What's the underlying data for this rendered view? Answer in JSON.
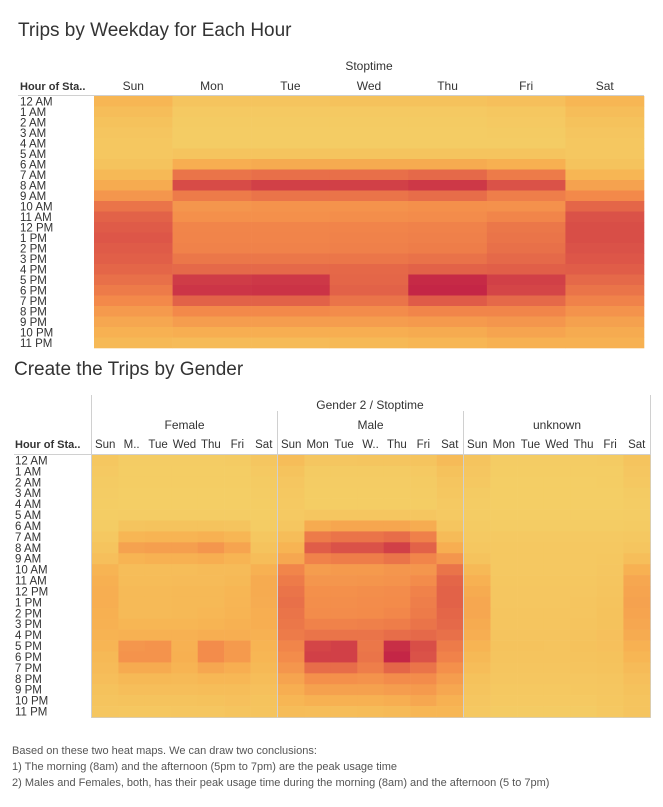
{
  "chart_data": [
    {
      "type": "heatmap",
      "title": "Trips by Weekday for Each Hour",
      "column_header": "Stoptime",
      "row_header": "Hour of Sta..",
      "x": [
        "Sun",
        "Mon",
        "Tue",
        "Wed",
        "Thu",
        "Fri",
        "Sat"
      ],
      "y": [
        "12 AM",
        "1 AM",
        "2 AM",
        "3 AM",
        "4 AM",
        "5 AM",
        "6 AM",
        "7 AM",
        "8 AM",
        "9 AM",
        "10 AM",
        "11 AM",
        "12 PM",
        "1 PM",
        "2 PM",
        "3 PM",
        "4 PM",
        "5 PM",
        "6 PM",
        "7 PM",
        "8 PM",
        "9 PM",
        "10 PM",
        "11 PM"
      ],
      "values": [
        [
          0.22,
          0.1,
          0.1,
          0.12,
          0.12,
          0.14,
          0.22
        ],
        [
          0.16,
          0.05,
          0.05,
          0.05,
          0.05,
          0.07,
          0.16
        ],
        [
          0.12,
          0.04,
          0.04,
          0.04,
          0.04,
          0.05,
          0.12
        ],
        [
          0.09,
          0.03,
          0.03,
          0.03,
          0.03,
          0.04,
          0.09
        ],
        [
          0.07,
          0.03,
          0.03,
          0.03,
          0.03,
          0.03,
          0.07
        ],
        [
          0.07,
          0.1,
          0.1,
          0.1,
          0.1,
          0.1,
          0.07
        ],
        [
          0.11,
          0.28,
          0.3,
          0.3,
          0.3,
          0.27,
          0.11
        ],
        [
          0.2,
          0.62,
          0.65,
          0.65,
          0.68,
          0.58,
          0.22
        ],
        [
          0.3,
          0.83,
          0.88,
          0.88,
          0.92,
          0.8,
          0.35
        ],
        [
          0.42,
          0.58,
          0.62,
          0.62,
          0.66,
          0.56,
          0.5
        ],
        [
          0.62,
          0.42,
          0.44,
          0.44,
          0.46,
          0.45,
          0.7
        ],
        [
          0.72,
          0.46,
          0.46,
          0.47,
          0.48,
          0.52,
          0.8
        ],
        [
          0.76,
          0.52,
          0.52,
          0.53,
          0.54,
          0.6,
          0.82
        ],
        [
          0.78,
          0.53,
          0.53,
          0.54,
          0.55,
          0.62,
          0.82
        ],
        [
          0.76,
          0.54,
          0.54,
          0.55,
          0.57,
          0.64,
          0.8
        ],
        [
          0.74,
          0.6,
          0.6,
          0.61,
          0.63,
          0.68,
          0.78
        ],
        [
          0.7,
          0.68,
          0.68,
          0.69,
          0.72,
          0.74,
          0.75
        ],
        [
          0.64,
          0.9,
          0.92,
          0.7,
          0.98,
          0.88,
          0.68
        ],
        [
          0.58,
          0.93,
          0.94,
          0.72,
          1.0,
          0.86,
          0.62
        ],
        [
          0.5,
          0.72,
          0.72,
          0.62,
          0.76,
          0.68,
          0.54
        ],
        [
          0.4,
          0.5,
          0.5,
          0.48,
          0.52,
          0.52,
          0.44
        ],
        [
          0.32,
          0.38,
          0.38,
          0.38,
          0.4,
          0.42,
          0.36
        ],
        [
          0.26,
          0.28,
          0.28,
          0.28,
          0.3,
          0.34,
          0.3
        ],
        [
          0.2,
          0.18,
          0.18,
          0.2,
          0.22,
          0.26,
          0.26
        ]
      ]
    },
    {
      "type": "heatmap",
      "title": "Create the Trips by Gender",
      "column_header": "Gender 2 / Stoptime",
      "row_header": "Hour of Sta..",
      "groups": [
        "Female",
        "Male",
        "unknown"
      ],
      "x_labels": [
        [
          "Sun",
          "M..",
          "Tue",
          "Wed",
          "Thu",
          "Fri",
          "Sat"
        ],
        [
          "Sun",
          "Mon",
          "Tue",
          "W..",
          "Thu",
          "Fri",
          "Sat"
        ],
        [
          "Sun",
          "Mon",
          "Tue",
          "Wed",
          "Thu",
          "Fri",
          "Sat"
        ]
      ],
      "y": [
        "12 AM",
        "1 AM",
        "2 AM",
        "3 AM",
        "4 AM",
        "5 AM",
        "6 AM",
        "7 AM",
        "8 AM",
        "9 AM",
        "10 AM",
        "11 AM",
        "12 PM",
        "1 PM",
        "2 PM",
        "3 PM",
        "4 PM",
        "5 PM",
        "6 PM",
        "7 PM",
        "8 PM",
        "9 PM",
        "10 PM",
        "11 PM"
      ],
      "values": {
        "Female": [
          [
            0.07,
            0.03,
            0.03,
            0.03,
            0.03,
            0.04,
            0.08
          ],
          [
            0.05,
            0.02,
            0.02,
            0.02,
            0.02,
            0.02,
            0.05
          ],
          [
            0.04,
            0.02,
            0.02,
            0.02,
            0.02,
            0.02,
            0.04
          ],
          [
            0.03,
            0.01,
            0.01,
            0.01,
            0.01,
            0.01,
            0.03
          ],
          [
            0.02,
            0.01,
            0.01,
            0.01,
            0.01,
            0.01,
            0.02
          ],
          [
            0.02,
            0.03,
            0.03,
            0.03,
            0.03,
            0.03,
            0.02
          ],
          [
            0.03,
            0.1,
            0.11,
            0.11,
            0.11,
            0.1,
            0.03
          ],
          [
            0.06,
            0.22,
            0.24,
            0.24,
            0.26,
            0.22,
            0.07
          ],
          [
            0.1,
            0.35,
            0.37,
            0.37,
            0.42,
            0.34,
            0.11
          ],
          [
            0.14,
            0.24,
            0.26,
            0.26,
            0.28,
            0.24,
            0.16
          ],
          [
            0.24,
            0.16,
            0.16,
            0.16,
            0.18,
            0.18,
            0.26
          ],
          [
            0.27,
            0.17,
            0.17,
            0.18,
            0.18,
            0.2,
            0.3
          ],
          [
            0.28,
            0.19,
            0.19,
            0.2,
            0.2,
            0.22,
            0.3
          ],
          [
            0.28,
            0.19,
            0.19,
            0.2,
            0.2,
            0.23,
            0.29
          ],
          [
            0.27,
            0.19,
            0.19,
            0.2,
            0.21,
            0.24,
            0.28
          ],
          [
            0.26,
            0.22,
            0.22,
            0.22,
            0.24,
            0.26,
            0.28
          ],
          [
            0.25,
            0.26,
            0.26,
            0.26,
            0.28,
            0.28,
            0.26
          ],
          [
            0.23,
            0.42,
            0.44,
            0.26,
            0.48,
            0.4,
            0.24
          ],
          [
            0.2,
            0.44,
            0.44,
            0.27,
            0.48,
            0.4,
            0.22
          ],
          [
            0.18,
            0.3,
            0.3,
            0.24,
            0.32,
            0.28,
            0.2
          ],
          [
            0.15,
            0.2,
            0.2,
            0.19,
            0.21,
            0.21,
            0.16
          ],
          [
            0.12,
            0.15,
            0.15,
            0.15,
            0.16,
            0.16,
            0.13
          ],
          [
            0.1,
            0.11,
            0.11,
            0.11,
            0.12,
            0.13,
            0.11
          ],
          [
            0.08,
            0.07,
            0.07,
            0.08,
            0.08,
            0.1,
            0.1
          ]
        ],
        "Male": [
          [
            0.16,
            0.08,
            0.08,
            0.09,
            0.09,
            0.1,
            0.18
          ],
          [
            0.11,
            0.04,
            0.04,
            0.04,
            0.04,
            0.05,
            0.12
          ],
          [
            0.08,
            0.03,
            0.03,
            0.03,
            0.03,
            0.04,
            0.09
          ],
          [
            0.06,
            0.02,
            0.02,
            0.02,
            0.02,
            0.03,
            0.07
          ],
          [
            0.05,
            0.02,
            0.02,
            0.02,
            0.02,
            0.02,
            0.05
          ],
          [
            0.05,
            0.08,
            0.08,
            0.08,
            0.08,
            0.08,
            0.05
          ],
          [
            0.08,
            0.3,
            0.33,
            0.33,
            0.33,
            0.29,
            0.09
          ],
          [
            0.16,
            0.58,
            0.62,
            0.62,
            0.66,
            0.55,
            0.18
          ],
          [
            0.24,
            0.75,
            0.8,
            0.8,
            0.88,
            0.72,
            0.28
          ],
          [
            0.32,
            0.54,
            0.57,
            0.57,
            0.62,
            0.52,
            0.42
          ],
          [
            0.52,
            0.38,
            0.4,
            0.4,
            0.42,
            0.42,
            0.62
          ],
          [
            0.58,
            0.42,
            0.42,
            0.43,
            0.44,
            0.48,
            0.7
          ],
          [
            0.62,
            0.46,
            0.46,
            0.47,
            0.48,
            0.54,
            0.72
          ],
          [
            0.64,
            0.47,
            0.47,
            0.48,
            0.49,
            0.56,
            0.72
          ],
          [
            0.62,
            0.48,
            0.48,
            0.49,
            0.51,
            0.58,
            0.7
          ],
          [
            0.6,
            0.54,
            0.54,
            0.55,
            0.57,
            0.62,
            0.68
          ],
          [
            0.58,
            0.62,
            0.62,
            0.62,
            0.66,
            0.68,
            0.64
          ],
          [
            0.52,
            0.86,
            0.88,
            0.6,
            0.96,
            0.82,
            0.58
          ],
          [
            0.48,
            0.88,
            0.88,
            0.62,
            1.0,
            0.8,
            0.54
          ],
          [
            0.42,
            0.66,
            0.66,
            0.56,
            0.7,
            0.62,
            0.46
          ],
          [
            0.34,
            0.46,
            0.46,
            0.44,
            0.48,
            0.48,
            0.38
          ],
          [
            0.28,
            0.36,
            0.36,
            0.36,
            0.38,
            0.4,
            0.32
          ],
          [
            0.22,
            0.26,
            0.26,
            0.26,
            0.28,
            0.32,
            0.26
          ],
          [
            0.17,
            0.16,
            0.16,
            0.17,
            0.19,
            0.22,
            0.22
          ]
        ],
        "unknown": [
          [
            0.1,
            0.03,
            0.03,
            0.03,
            0.03,
            0.04,
            0.1
          ],
          [
            0.08,
            0.02,
            0.02,
            0.02,
            0.02,
            0.02,
            0.08
          ],
          [
            0.06,
            0.01,
            0.01,
            0.01,
            0.01,
            0.02,
            0.06
          ],
          [
            0.04,
            0.01,
            0.01,
            0.01,
            0.01,
            0.01,
            0.04
          ],
          [
            0.03,
            0.01,
            0.01,
            0.01,
            0.01,
            0.01,
            0.03
          ],
          [
            0.03,
            0.02,
            0.02,
            0.02,
            0.02,
            0.02,
            0.03
          ],
          [
            0.04,
            0.03,
            0.03,
            0.03,
            0.03,
            0.03,
            0.04
          ],
          [
            0.05,
            0.05,
            0.05,
            0.05,
            0.05,
            0.05,
            0.06
          ],
          [
            0.07,
            0.06,
            0.06,
            0.06,
            0.06,
            0.06,
            0.09
          ],
          [
            0.11,
            0.06,
            0.06,
            0.06,
            0.06,
            0.07,
            0.15
          ],
          [
            0.2,
            0.06,
            0.06,
            0.06,
            0.06,
            0.08,
            0.26
          ],
          [
            0.26,
            0.07,
            0.07,
            0.07,
            0.07,
            0.09,
            0.32
          ],
          [
            0.3,
            0.08,
            0.08,
            0.08,
            0.08,
            0.1,
            0.34
          ],
          [
            0.32,
            0.08,
            0.08,
            0.08,
            0.09,
            0.11,
            0.35
          ],
          [
            0.32,
            0.09,
            0.09,
            0.09,
            0.09,
            0.12,
            0.34
          ],
          [
            0.3,
            0.09,
            0.09,
            0.09,
            0.1,
            0.12,
            0.32
          ],
          [
            0.28,
            0.1,
            0.1,
            0.1,
            0.11,
            0.13,
            0.3
          ],
          [
            0.24,
            0.11,
            0.11,
            0.1,
            0.12,
            0.13,
            0.26
          ],
          [
            0.2,
            0.1,
            0.1,
            0.1,
            0.11,
            0.12,
            0.22
          ],
          [
            0.16,
            0.09,
            0.09,
            0.09,
            0.1,
            0.11,
            0.18
          ],
          [
            0.12,
            0.08,
            0.08,
            0.08,
            0.08,
            0.09,
            0.14
          ],
          [
            0.1,
            0.06,
            0.06,
            0.06,
            0.07,
            0.08,
            0.12
          ],
          [
            0.08,
            0.05,
            0.05,
            0.05,
            0.05,
            0.07,
            0.1
          ],
          [
            0.06,
            0.04,
            0.04,
            0.04,
            0.04,
            0.06,
            0.1
          ]
        ]
      }
    }
  ],
  "colors": {
    "scale": [
      "#f4cf66",
      "#f7b352",
      "#f3894a",
      "#e05d48",
      "#c42646"
    ],
    "axis_text": "#333333",
    "divider": "#d0d0d0"
  },
  "notes": [
    "Based on these two heat maps. We can draw two conclusions:",
    "1) The morning (8am) and the afternoon (5pm to 7pm) are the peak usage time",
    "2) Males and Females, both, has their peak usage time during the morning (8am) and the afternoon (5 to 7pm)"
  ]
}
